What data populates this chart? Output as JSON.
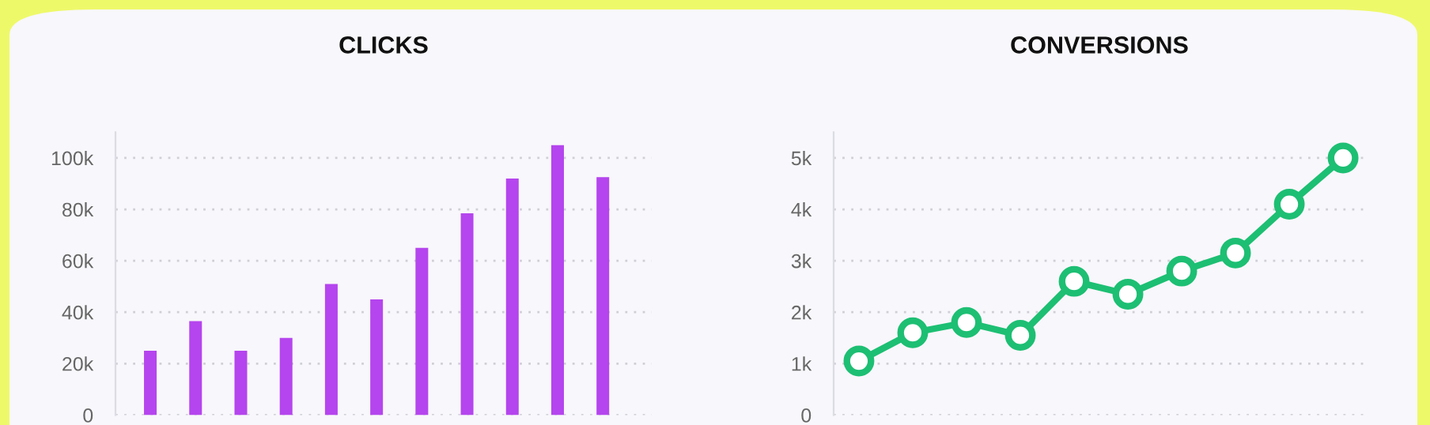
{
  "chart_data": [
    {
      "type": "bar",
      "title": "CLICKS",
      "categories": [
        null,
        null,
        null,
        null,
        null,
        null,
        null,
        null,
        null,
        null,
        null
      ],
      "series": [
        {
          "color": "#b545ee",
          "values": [
            25000,
            36500,
            25000,
            30000,
            51000,
            45000,
            65000,
            78500,
            92000,
            105000,
            92500
          ]
        }
      ],
      "ylim": [
        0,
        110000
      ],
      "yticks": [
        {
          "value": 0,
          "label": "0"
        },
        {
          "value": 20000,
          "label": "20k"
        },
        {
          "value": 40000,
          "label": "40k"
        },
        {
          "value": 60000,
          "label": "60k"
        },
        {
          "value": 80000,
          "label": "80k"
        },
        {
          "value": 100000,
          "label": "100k"
        }
      ],
      "grid": "y",
      "tick_labels": "y"
    },
    {
      "type": "line",
      "title": "CONVERSIONS",
      "categories": [
        null,
        null,
        null,
        null,
        null,
        null,
        null,
        null,
        null,
        null
      ],
      "series": [
        {
          "color": "#1dbf73",
          "values": [
            1050,
            1600,
            1800,
            1550,
            2600,
            2350,
            2800,
            3150,
            4100,
            5000
          ]
        }
      ],
      "ylim": [
        0,
        5500
      ],
      "yticks": [
        {
          "value": 0,
          "label": "0"
        },
        {
          "value": 1000,
          "label": "1k"
        },
        {
          "value": 2000,
          "label": "2k"
        },
        {
          "value": 3000,
          "label": "3k"
        },
        {
          "value": 4000,
          "label": "4k"
        },
        {
          "value": 5000,
          "label": "5k"
        }
      ],
      "grid": "y",
      "marker": "circle",
      "line_style": "solid",
      "tick_labels": "y"
    }
  ]
}
